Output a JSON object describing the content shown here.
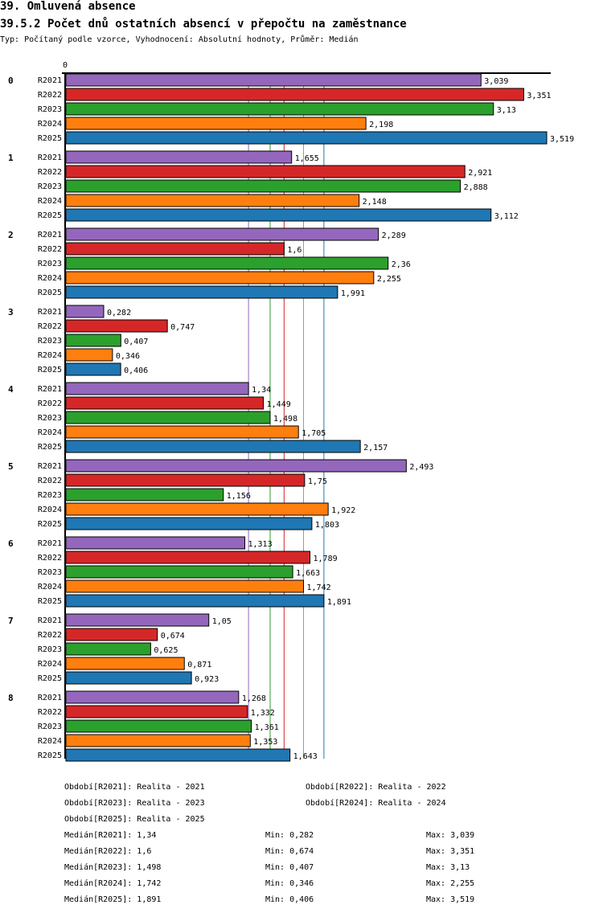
{
  "header": {
    "title": "39. Omluvená absence",
    "subtitle": "39.5.2 Počet dnů ostatních absencí v přepočtu na zaměstnance",
    "info": "Typ: Počítaný podle vzorce, Vyhodnocení: Absolutní hodnoty, Průměr: Medián"
  },
  "chart_data": {
    "type": "bar",
    "orientation": "horizontal",
    "title": "39.5.2 Počet dnů ostatních absencí v přepočtu na zaměstnance",
    "x_axis_label": "0",
    "xlim": [
      0,
      3.519
    ],
    "categories": [
      "0",
      "1",
      "2",
      "3",
      "4",
      "5",
      "6",
      "7",
      "8"
    ],
    "series": [
      {
        "name": "R2021",
        "color": "#9467bd",
        "values": [
          3.039,
          1.655,
          2.289,
          0.282,
          1.34,
          2.493,
          1.313,
          1.05,
          1.268
        ]
      },
      {
        "name": "R2022",
        "color": "#d62728",
        "values": [
          3.351,
          2.921,
          1.6,
          0.747,
          1.449,
          1.75,
          1.789,
          0.674,
          1.332
        ]
      },
      {
        "name": "R2023",
        "color": "#2ca02c",
        "values": [
          3.13,
          2.888,
          2.36,
          0.407,
          1.498,
          1.156,
          1.663,
          0.625,
          1.361
        ]
      },
      {
        "name": "R2024",
        "color": "#ff7f0e",
        "values": [
          2.198,
          2.148,
          2.255,
          0.346,
          1.705,
          1.922,
          1.742,
          0.871,
          1.353
        ]
      },
      {
        "name": "R2025",
        "color": "#1f77b4",
        "values": [
          3.519,
          3.112,
          1.991,
          0.406,
          2.157,
          1.803,
          1.891,
          0.923,
          1.643
        ]
      }
    ],
    "medians": [
      1.34,
      1.6,
      1.498,
      1.742,
      1.891
    ],
    "periods": [
      "Období[R2021]: Realita - 2021",
      "Období[R2022]: Realita - 2022",
      "Období[R2023]: Realita - 2023",
      "Období[R2024]: Realita - 2024",
      "Období[R2025]: Realita - 2025"
    ],
    "stats": [
      {
        "median": "Medián[R2021]: 1,34",
        "min": "Min: 0,282",
        "max": "Max: 3,039"
      },
      {
        "median": "Medián[R2022]: 1,6",
        "min": "Min: 0,674",
        "max": "Max: 3,351"
      },
      {
        "median": "Medián[R2023]: 1,498",
        "min": "Min: 0,407",
        "max": "Max: 3,13"
      },
      {
        "median": "Medián[R2024]: 1,742",
        "min": "Min: 0,346",
        "max": "Max: 2,255"
      },
      {
        "median": "Medián[R2025]: 1,891",
        "min": "Min: 0,406",
        "max": "Max: 3,519"
      }
    ]
  }
}
